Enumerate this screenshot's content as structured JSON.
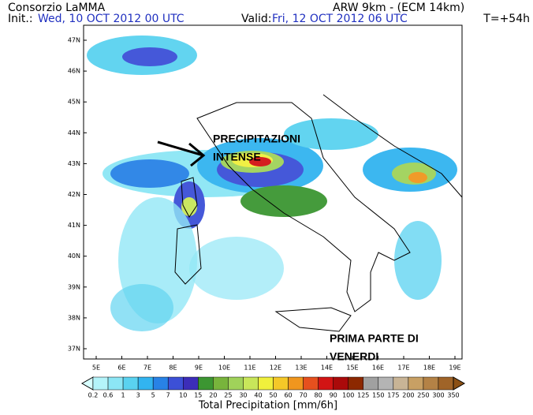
{
  "header": {
    "org": "Consorzio LaMMA",
    "init_label": "Init.:",
    "init": "Wed, 10 OCT 2012  00 UTC",
    "valid_label": "Valid:",
    "valid": "Fri, 12 OCT 2012  06 UTC",
    "model": "ARW 9km - (ECM 14km)",
    "lead": "T=+54h"
  },
  "map": {
    "lat_labels": [
      "47N",
      "46N",
      "45N",
      "44N",
      "43N",
      "42N",
      "41N",
      "40N",
      "39N",
      "38N",
      "37N"
    ],
    "lon_labels": [
      "5E",
      "6E",
      "7E",
      "8E",
      "9E",
      "10E",
      "11E",
      "12E",
      "13E",
      "14E",
      "15E",
      "16E",
      "17E",
      "18E",
      "19E"
    ],
    "annotations": [
      {
        "lines": [
          "PRECIPITAZIONI",
          "INTENSE"
        ]
      },
      {
        "lines": [
          "PRIMA PARTE DI",
          "VENERDI"
        ]
      }
    ]
  },
  "colorbar": {
    "labels": [
      "0.2",
      "0.6",
      "1",
      "3",
      "5",
      "7",
      "10",
      "15",
      "20",
      "25",
      "30",
      "40",
      "50",
      "60",
      "70",
      "80",
      "90",
      "100",
      "125",
      "150",
      "175",
      "200",
      "250",
      "300",
      "350"
    ],
    "colors": [
      "#d8ffff",
      "#b4f4fa",
      "#8ce6f5",
      "#5ad2f0",
      "#32b4f0",
      "#2882e6",
      "#3c50d7",
      "#3c2db9",
      "#3c9632",
      "#78b43c",
      "#a0d25a",
      "#c8e65a",
      "#f0f03c",
      "#f5c828",
      "#f0961e",
      "#e6501e",
      "#d21414",
      "#aa0a0a",
      "#8c2800",
      "#a0a0a0",
      "#b4b4b4",
      "#c8b496",
      "#c8a064",
      "#b48246",
      "#a06428",
      "#8c5014"
    ],
    "title": "Total Precipitation [mm/6h]"
  }
}
